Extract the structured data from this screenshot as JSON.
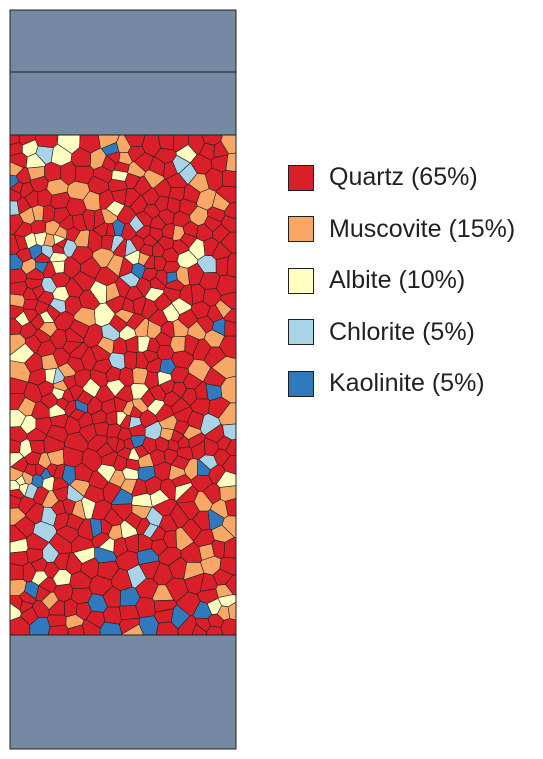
{
  "colors": {
    "platen": "#7689a3",
    "outline": "#231f20",
    "background": "#ffffff"
  },
  "legend": [
    {
      "label": "Quartz (65%)",
      "color": "#d9202a",
      "fraction": 0.65
    },
    {
      "label": "Muscovite (15%)",
      "color": "#f7a867",
      "fraction": 0.15
    },
    {
      "label": "Albite (10%)",
      "color": "#ffffc2",
      "fraction": 0.1
    },
    {
      "label": "Chlorite (5%)",
      "color": "#a9d3e6",
      "fraction": 0.05
    },
    {
      "label": "Kaolinite (5%)",
      "color": "#2f79bc",
      "fraction": 0.05
    }
  ]
}
